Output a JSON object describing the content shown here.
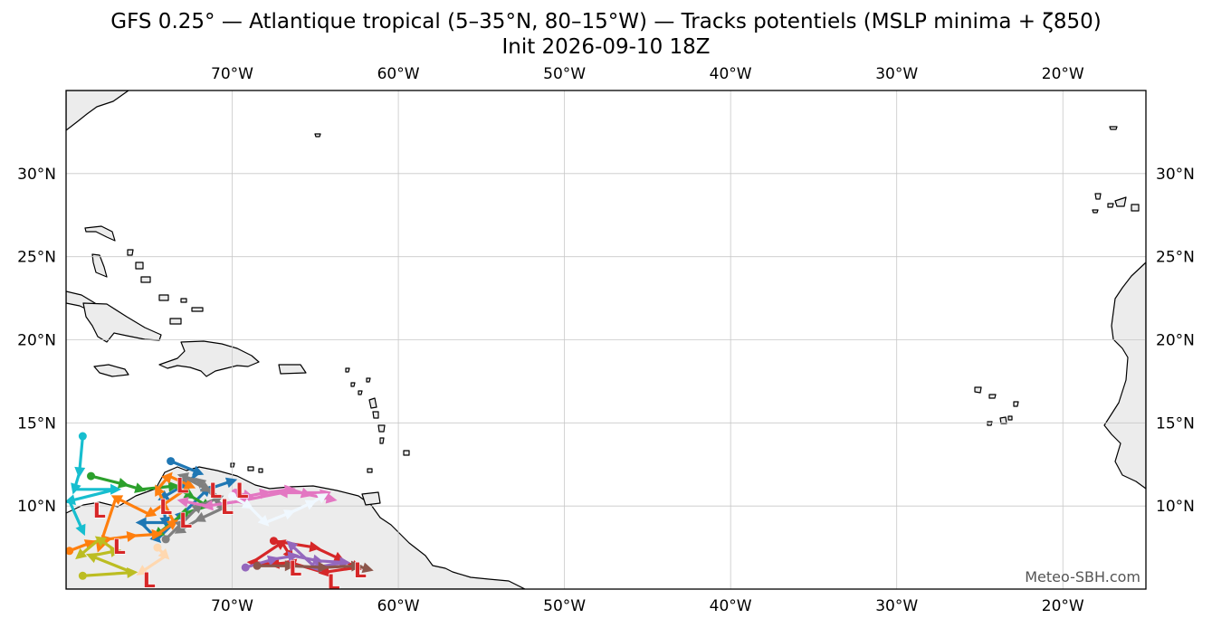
{
  "title": {
    "line1": "GFS 0.25° — Atlantique tropical (5–35°N, 80–15°W) — Tracks potentiels (MSLP minima + ζ850)",
    "line2": "Init 2026-09-10 18Z"
  },
  "credit": "Meteo-SBH.com",
  "map_extent": {
    "lon_min": -80,
    "lon_max": -15,
    "lat_min": 5,
    "lat_max": 35
  },
  "colors": {
    "land": "#ececec",
    "coast": "#000000",
    "grid": "#c8c8c8",
    "low_marker": "#d62728"
  },
  "lon_ticks": [
    {
      "lon": -70,
      "label": "70°W"
    },
    {
      "lon": -60,
      "label": "60°W"
    },
    {
      "lon": -50,
      "label": "50°W"
    },
    {
      "lon": -40,
      "label": "40°W"
    },
    {
      "lon": -30,
      "label": "30°W"
    },
    {
      "lon": -20,
      "label": "20°W"
    }
  ],
  "lat_ticks": [
    {
      "lat": 30,
      "label": "30°N"
    },
    {
      "lat": 25,
      "label": "25°N"
    },
    {
      "lat": 20,
      "label": "20°N"
    },
    {
      "lat": 15,
      "label": "15°N"
    },
    {
      "lat": 10,
      "label": "10°N"
    }
  ],
  "tracks": [
    {
      "color": "#17becf",
      "points": [
        [
          -79.0,
          14.2
        ],
        [
          -79.2,
          12.0
        ],
        [
          -79.5,
          11.0
        ],
        [
          -77.0,
          11.0
        ],
        [
          -79.8,
          10.3
        ],
        [
          -79.0,
          8.5
        ]
      ]
    },
    {
      "color": "#1f77b4",
      "points": [
        [
          -73.7,
          12.7
        ],
        [
          -72.0,
          12.0
        ],
        [
          -73.0,
          11.2
        ],
        [
          -74.2,
          10.5
        ],
        [
          -74.0,
          9.0
        ],
        [
          -75.5,
          9.0
        ],
        [
          -74.5,
          8.0
        ],
        [
          -73.0,
          9.5
        ],
        [
          -71.5,
          11.0
        ],
        [
          -70.0,
          11.5
        ]
      ]
    },
    {
      "color": "#2ca02c",
      "points": [
        [
          -78.5,
          11.8
        ],
        [
          -76.5,
          11.3
        ],
        [
          -75.5,
          11.0
        ],
        [
          -73.5,
          11.2
        ],
        [
          -72.5,
          10.6
        ],
        [
          -71.5,
          10.0
        ],
        [
          -73.0,
          9.5
        ],
        [
          -74.5,
          8.3
        ]
      ]
    },
    {
      "color": "#ff7f0e",
      "points": [
        [
          -79.8,
          7.3
        ],
        [
          -78.5,
          7.8
        ],
        [
          -77.5,
          8.0
        ],
        [
          -76.0,
          8.2
        ],
        [
          -74.5,
          8.3
        ],
        [
          -73.5,
          9.0
        ],
        [
          -74.5,
          11.0
        ],
        [
          -73.8,
          11.8
        ],
        [
          -72.5,
          11.2
        ],
        [
          -75.0,
          9.5
        ],
        [
          -77.0,
          10.5
        ],
        [
          -78.0,
          7.5
        ]
      ]
    },
    {
      "color": "#7f7f7f",
      "points": [
        [
          -74.0,
          8.0
        ],
        [
          -73.0,
          9.0
        ],
        [
          -72.0,
          10.0
        ],
        [
          -70.8,
          10.5
        ],
        [
          -72.0,
          11.5
        ],
        [
          -73.0,
          11.8
        ],
        [
          -71.5,
          11.0
        ],
        [
          -70.5,
          9.9
        ],
        [
          -72.0,
          9.2
        ],
        [
          -73.2,
          8.5
        ]
      ]
    },
    {
      "color": "#e377c2",
      "points": [
        [
          -69.8,
          10.8
        ],
        [
          -69.0,
          10.6
        ],
        [
          -68.0,
          10.8
        ],
        [
          -66.5,
          11.0
        ],
        [
          -65.5,
          10.7
        ],
        [
          -64.0,
          10.4
        ],
        [
          -64.5,
          10.8
        ],
        [
          -67.0,
          10.8
        ],
        [
          -69.5,
          10.3
        ],
        [
          -71.5,
          10.0
        ],
        [
          -73.0,
          10.3
        ]
      ]
    },
    {
      "color": "#f0f8ff",
      "points": [
        [
          -70.0,
          10.6
        ],
        [
          -69.0,
          10.0
        ],
        [
          -68.0,
          9.0
        ],
        [
          -66.5,
          9.6
        ],
        [
          -65.2,
          10.2
        ],
        [
          -64.5,
          10.6
        ]
      ]
    },
    {
      "color": "#bcbd22",
      "points": [
        [
          -79.0,
          5.8
        ],
        [
          -76.0,
          6.0
        ],
        [
          -78.5,
          7.0
        ],
        [
          -77.0,
          7.3
        ],
        [
          -78.0,
          8.0
        ],
        [
          -79.2,
          7.0
        ]
      ]
    },
    {
      "color": "#d62728",
      "points": [
        [
          -67.5,
          7.9
        ],
        [
          -65.0,
          7.5
        ],
        [
          -63.5,
          6.8
        ],
        [
          -62.5,
          6.3
        ],
        [
          -64.5,
          6.0
        ],
        [
          -66.5,
          6.6
        ],
        [
          -67.5,
          6.5
        ],
        [
          -68.8,
          6.6
        ],
        [
          -67.0,
          7.8
        ],
        [
          -66.5,
          7.0
        ]
      ]
    },
    {
      "color": "#9467bd",
      "points": [
        [
          -69.2,
          6.3
        ],
        [
          -67.5,
          6.8
        ],
        [
          -66.3,
          7.0
        ],
        [
          -64.8,
          6.7
        ],
        [
          -63.2,
          6.6
        ],
        [
          -65.0,
          6.3
        ],
        [
          -66.5,
          7.7
        ]
      ]
    },
    {
      "color": "#8c564b",
      "points": [
        [
          -68.5,
          6.4
        ],
        [
          -66.5,
          6.4
        ],
        [
          -64.5,
          6.3
        ],
        [
          -62.5,
          6.4
        ],
        [
          -61.8,
          6.2
        ]
      ]
    },
    {
      "color": "#ffd8b0",
      "points": [
        [
          -74.5,
          7.5
        ],
        [
          -74.0,
          7.0
        ],
        [
          -75.5,
          6.0
        ]
      ]
    }
  ],
  "lows": [
    {
      "lon": -78.0,
      "lat": 9.8
    },
    {
      "lon": -76.8,
      "lat": 7.6
    },
    {
      "lon": -75.0,
      "lat": 5.6
    },
    {
      "lon": -74.0,
      "lat": 10.0
    },
    {
      "lon": -73.0,
      "lat": 11.3
    },
    {
      "lon": -72.8,
      "lat": 9.2
    },
    {
      "lon": -71.0,
      "lat": 11.0
    },
    {
      "lon": -70.3,
      "lat": 10.0
    },
    {
      "lon": -69.4,
      "lat": 11.0
    },
    {
      "lon": -66.2,
      "lat": 6.3
    },
    {
      "lon": -62.3,
      "lat": 6.2
    },
    {
      "lon": -63.9,
      "lat": 5.5
    }
  ]
}
